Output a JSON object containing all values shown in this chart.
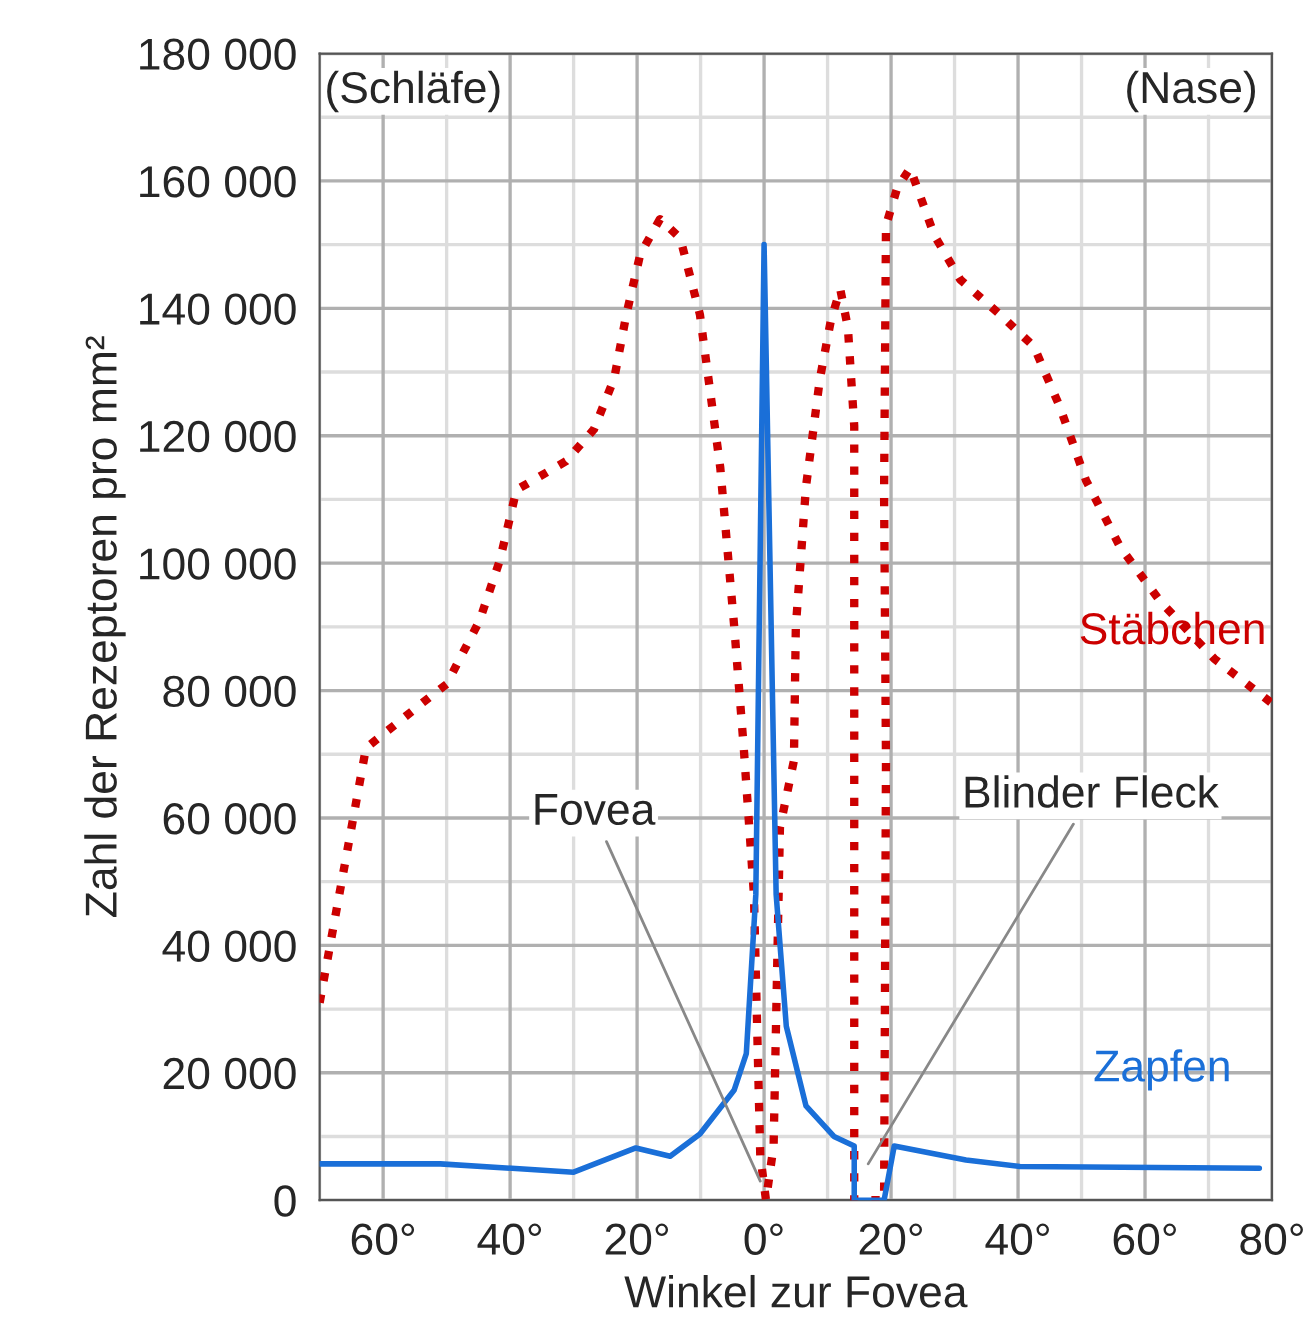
{
  "chart_data": {
    "type": "line",
    "xlabel": "Winkel zur Fovea",
    "ylabel": "Zahl der Rezeptoren pro mm²",
    "xlim": [
      -70,
      80
    ],
    "ylim": [
      0,
      180000
    ],
    "xticks": [
      {
        "value": -60,
        "label": "60°"
      },
      {
        "value": -40,
        "label": "40°"
      },
      {
        "value": -20,
        "label": "20°"
      },
      {
        "value": 0,
        "label": "0°"
      },
      {
        "value": 20,
        "label": "20°"
      },
      {
        "value": 40,
        "label": "40°"
      },
      {
        "value": 60,
        "label": "60°"
      },
      {
        "value": 80,
        "label": "80°"
      }
    ],
    "yticks": [
      {
        "value": 0,
        "label": "0"
      },
      {
        "value": 20000,
        "label": "20 000"
      },
      {
        "value": 40000,
        "label": "40 000"
      },
      {
        "value": 60000,
        "label": "60 000"
      },
      {
        "value": 80000,
        "label": "80 000"
      },
      {
        "value": 100000,
        "label": "100 000"
      },
      {
        "value": 120000,
        "label": "120 000"
      },
      {
        "value": 140000,
        "label": "140 000"
      },
      {
        "value": 160000,
        "label": "160 000"
      },
      {
        "value": 180000,
        "label": "180 000"
      }
    ],
    "grid": true,
    "legend": false,
    "marker": "none",
    "series": [
      {
        "name": "Stäbchen",
        "color": "#cc0000",
        "line_style": "dotted",
        "x": [
          -70,
          -62.7,
          -52,
          -50,
          -44.8,
          -41.6,
          -39,
          -31.2,
          -26.8,
          -23.6,
          -21.7,
          -19.5,
          -16.4,
          -13.2,
          -10.1,
          -6.9,
          -4.7,
          -3.2,
          -1.6,
          -0.6,
          0.3,
          1.5,
          2.5,
          4.7,
          5,
          6.6,
          8.8,
          10.5,
          12,
          13.2,
          14.2,
          14.2,
          14.2,
          18.9,
          19.2,
          18.9,
          19.2,
          21,
          23,
          26.8,
          30.9,
          37.2,
          42.5,
          46.6,
          50.7,
          56.1,
          62.4,
          70.9,
          80
        ],
        "values": [
          31000,
          71000,
          79500,
          81000,
          91000,
          100500,
          111500,
          116000,
          121000,
          129000,
          139000,
          148500,
          154000,
          151000,
          139000,
          115000,
          90000,
          71000,
          48000,
          7000,
          0,
          8500,
          58500,
          69000,
          90000,
          112000,
          129000,
          138000,
          143000,
          137000,
          121500,
          71000,
          0,
          0,
          69000,
          111000,
          153000,
          159000,
          162000,
          151500,
          144500,
          139000,
          134000,
          124500,
          113000,
          102500,
          94000,
          85000,
          78000
        ]
      },
      {
        "name": "Zapfen",
        "color": "#1a6fd8",
        "line_style": "solid",
        "x": [
          -70,
          -51,
          -30,
          -20.2,
          -14.8,
          -10.1,
          -4.7,
          -2.8,
          -1.3,
          0,
          1.9,
          3.5,
          6.6,
          11,
          14.2,
          14.2,
          18.9,
          20.5,
          31.8,
          40.3,
          78
        ],
        "values": [
          5700,
          5700,
          4400,
          8200,
          6900,
          10400,
          17300,
          23000,
          48000,
          150000,
          48000,
          27300,
          14800,
          10000,
          8500,
          0,
          0,
          8500,
          6300,
          5300,
          5000
        ]
      }
    ],
    "annotations": [
      "(Schläfe)",
      "(Nase)",
      {
        "text": "Fovea",
        "x": -0.6,
        "y": 3000
      },
      {
        "text": "Blinder Fleck",
        "x": 16.4,
        "y": 5700
      }
    ]
  }
}
